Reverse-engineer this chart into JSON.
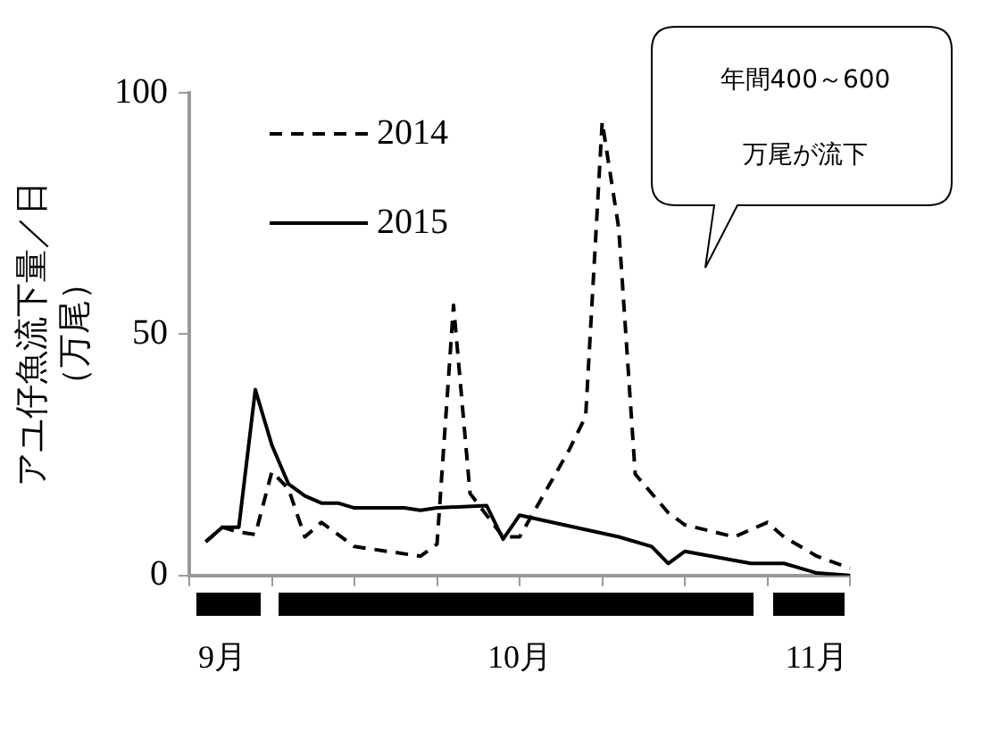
{
  "chart_data": {
    "type": "line",
    "ylabel": "アユ仔魚流下量／日（万尾）",
    "annotations": [
      "年間400～600万尾が流下"
    ],
    "categories": [
      null,
      null,
      "9月",
      null,
      null,
      null,
      null,
      null,
      null,
      null,
      null,
      null,
      null,
      null,
      null,
      null,
      null,
      null,
      null,
      null,
      "10月",
      null,
      null,
      null,
      null,
      null,
      null,
      null,
      null,
      null,
      null,
      null,
      null,
      null,
      null,
      null,
      null,
      null,
      "11月",
      null,
      null
    ],
    "ylim": [
      0,
      100
    ],
    "yticks": [
      0,
      50,
      100
    ],
    "legend": "top left",
    "series": [
      {
        "name": "2014",
        "color": "#000000",
        "line_style": "dashed",
        "values": [
          null,
          7,
          10,
          9,
          8.5,
          21.5,
          18,
          8,
          11,
          null,
          6,
          null,
          5,
          null,
          4,
          6.5,
          56,
          17,
          null,
          8,
          8,
          null,
          null,
          26,
          33,
          94,
          72,
          21,
          17,
          13,
          10.5,
          null,
          null,
          8,
          null,
          11,
          8,
          null,
          4,
          null,
          1.5
        ]
      },
      {
        "name": "2015",
        "color": "#000000",
        "line_style": "solid",
        "values": [
          null,
          7,
          10,
          10,
          38.5,
          27,
          19,
          16.5,
          15,
          15,
          14,
          null,
          null,
          14,
          13.5,
          14,
          null,
          null,
          14.5,
          7.5,
          12.5,
          null,
          null,
          null,
          null,
          null,
          8,
          null,
          6,
          2.5,
          5,
          null,
          null,
          null,
          2.5,
          2.5,
          2.5,
          1.5,
          0.5,
          null,
          0
        ]
      }
    ]
  }
}
